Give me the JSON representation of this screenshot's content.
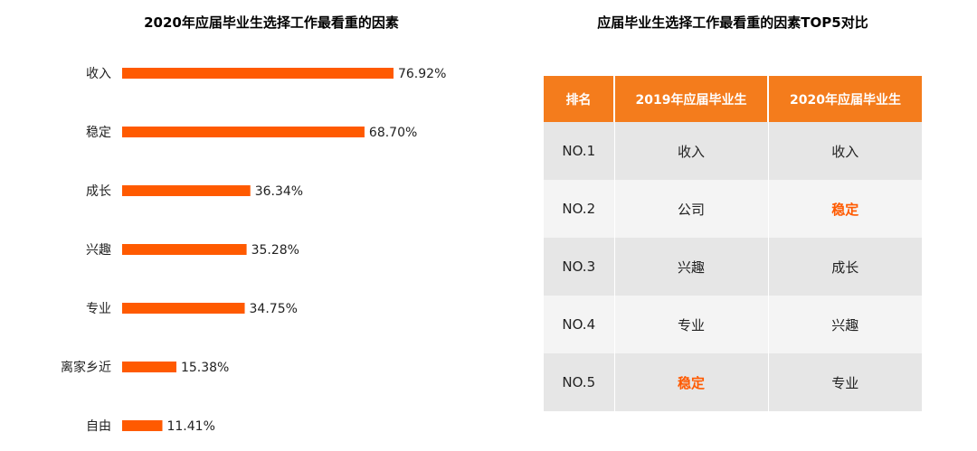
{
  "chart_data": {
    "type": "bar",
    "orientation": "horizontal",
    "title": "2020年应届毕业生选择工作最看重的因素",
    "categories": [
      "收入",
      "稳定",
      "成长",
      "兴趣",
      "专业",
      "离家乡近",
      "自由"
    ],
    "values": [
      76.92,
      68.7,
      36.34,
      35.28,
      34.75,
      15.38,
      11.41
    ],
    "value_labels": [
      "76.92%",
      "68.70%",
      "36.34%",
      "35.28%",
      "34.75%",
      "15.38%",
      "11.41%"
    ],
    "unit": "%",
    "xlim": [
      0,
      100
    ],
    "bar_color": "#ff5a00",
    "grid": false,
    "legend": "none"
  },
  "table": {
    "title": "应届毕业生选择工作最看重的因素TOP5对比",
    "header_color": "#f47c1c",
    "highlight_color": "#ff5a00",
    "headers": [
      "排名",
      "2019年应届毕业生",
      "2020年应届毕业生"
    ],
    "rows": [
      {
        "rank": "NO.1",
        "y2019": "收入",
        "y2020": "收入",
        "hl2019": false,
        "hl2020": false
      },
      {
        "rank": "NO.2",
        "y2019": "公司",
        "y2020": "稳定",
        "hl2019": false,
        "hl2020": true
      },
      {
        "rank": "NO.3",
        "y2019": "兴趣",
        "y2020": "成长",
        "hl2019": false,
        "hl2020": false
      },
      {
        "rank": "NO.4",
        "y2019": "专业",
        "y2020": "兴趣",
        "hl2019": false,
        "hl2020": false
      },
      {
        "rank": "NO.5",
        "y2019": "稳定",
        "y2020": "专业",
        "hl2019": true,
        "hl2020": false
      }
    ]
  }
}
